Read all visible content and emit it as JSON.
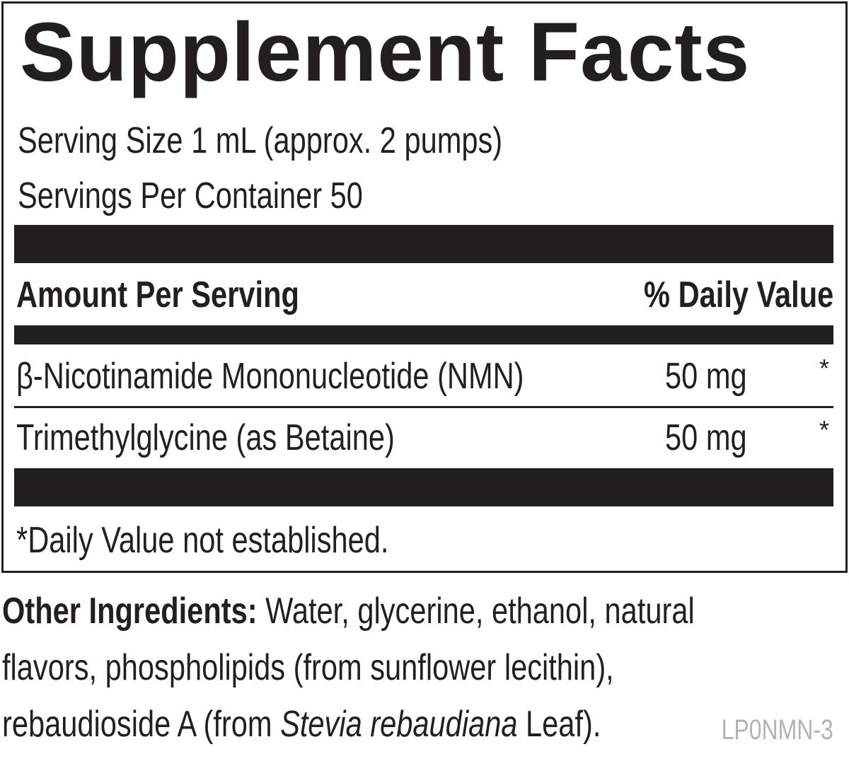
{
  "title": "Supplement Facts",
  "serving_size": "Serving Size 1 mL (approx. 2 pumps)",
  "servings_per_container": "Servings Per Container 50",
  "header": {
    "amount_label": "Amount Per Serving",
    "dv_label": "% Daily Value"
  },
  "rows": [
    {
      "name": "β-Nicotinamide Mononucleotide (NMN)",
      "amount": "50 mg",
      "dv": "*"
    },
    {
      "name": "Trimethylglycine (as Betaine)",
      "amount": "50 mg",
      "dv": "*"
    }
  ],
  "footnote": "*Daily Value not established.",
  "other_ingredients": {
    "label": "Other Ingredients:",
    "line1": " Water, glycerine, ethanol, natural",
    "line2": "flavors, phospholipids (from sunflower lecithin),",
    "line3_pre": "rebaudioside A (from ",
    "line3_italic": "Stevia rebaudiana",
    "line3_post": " Leaf)."
  },
  "code": "LP0NMN-3",
  "colors": {
    "ink": "#231f20",
    "code_gray": "#b3b3b3"
  }
}
